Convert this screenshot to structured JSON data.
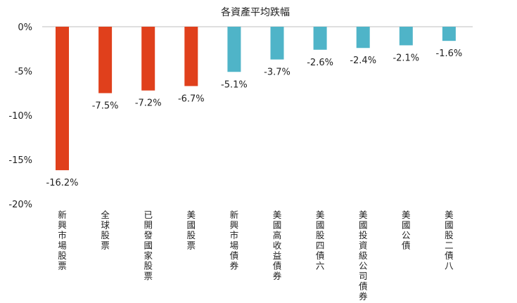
{
  "chart_data": {
    "type": "bar",
    "title": "各資產平均跌幅",
    "categories": [
      "新興市場股票",
      "全球股票",
      "已開發國家股票",
      "美國股票",
      "新興市場債券",
      "美國高收益債券",
      "美國股四債六",
      "美國投資級公司債券",
      "美國公債",
      "美國股二債八"
    ],
    "values": [
      -16.2,
      -7.5,
      -7.2,
      -6.7,
      -5.1,
      -3.7,
      -2.6,
      -2.4,
      -2.1,
      -1.6
    ],
    "value_labels": [
      "-16.2%",
      "-7.5%",
      "-7.2%",
      "-6.7%",
      "-5.1%",
      "-3.7%",
      "-2.6%",
      "-2.4%",
      "-2.1%",
      "-1.6%"
    ],
    "colors": [
      "#e0401c",
      "#e0401c",
      "#e0401c",
      "#e0401c",
      "#4fb4c8",
      "#4fb4c8",
      "#4fb4c8",
      "#4fb4c8",
      "#4fb4c8",
      "#4fb4c8"
    ],
    "yticks": [
      0,
      -5,
      -10,
      -15,
      -20
    ],
    "ytick_labels": [
      "0%",
      "-5%",
      "-10%",
      "-15%",
      "-20%"
    ],
    "ylim": [
      -20,
      0
    ],
    "xlabel": "",
    "ylabel": "",
    "grid": false,
    "legend": "none"
  }
}
